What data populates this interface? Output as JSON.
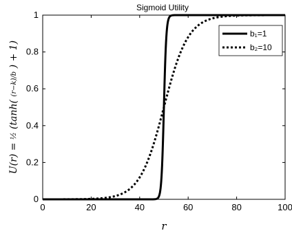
{
  "chart_data": {
    "type": "line",
    "title": "Sigmoid Utility",
    "xlabel": "r",
    "ylabel": "U(r) = ½(tanh((r−k)/b) + 1)",
    "xlim": [
      0,
      100
    ],
    "ylim": [
      0,
      1
    ],
    "x_ticks": [
      "0",
      "20",
      "40",
      "60",
      "80",
      "100"
    ],
    "y_ticks": [
      "0",
      "0.2",
      "0.4",
      "0.6",
      "0.8",
      "1"
    ],
    "k": 50,
    "grid": false,
    "legend_position": "top-right",
    "series": [
      {
        "name": "b₁=1",
        "b": 1,
        "style": "solid",
        "color": "#000000"
      },
      {
        "name": "b₂=10",
        "b": 10,
        "style": "dotted",
        "color": "#000000"
      }
    ]
  }
}
